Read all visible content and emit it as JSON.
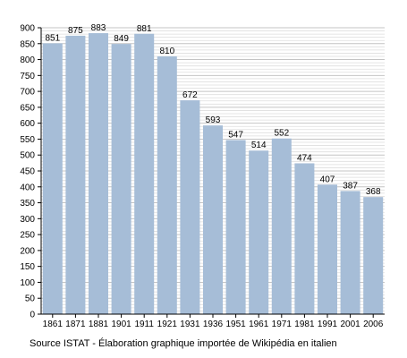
{
  "chart_data": {
    "type": "bar",
    "categories": [
      "1861",
      "1871",
      "1881",
      "1901",
      "1911",
      "1921",
      "1931",
      "1936",
      "1951",
      "1961",
      "1971",
      "1981",
      "1991",
      "2001",
      "2006"
    ],
    "values": [
      851,
      875,
      883,
      849,
      881,
      810,
      672,
      593,
      547,
      514,
      552,
      474,
      407,
      387,
      368
    ],
    "ylim": [
      0,
      900
    ],
    "yticks": [
      0,
      50,
      100,
      150,
      200,
      250,
      300,
      350,
      400,
      450,
      500,
      550,
      600,
      650,
      700,
      750,
      800,
      850,
      900
    ],
    "grid": true,
    "data_labels": true,
    "bar_color": "#a6bdd7",
    "title": "",
    "xlabel": "",
    "ylabel": ""
  },
  "source_note": "Source ISTAT - Élaboration graphique importée de Wikipédia en italien"
}
